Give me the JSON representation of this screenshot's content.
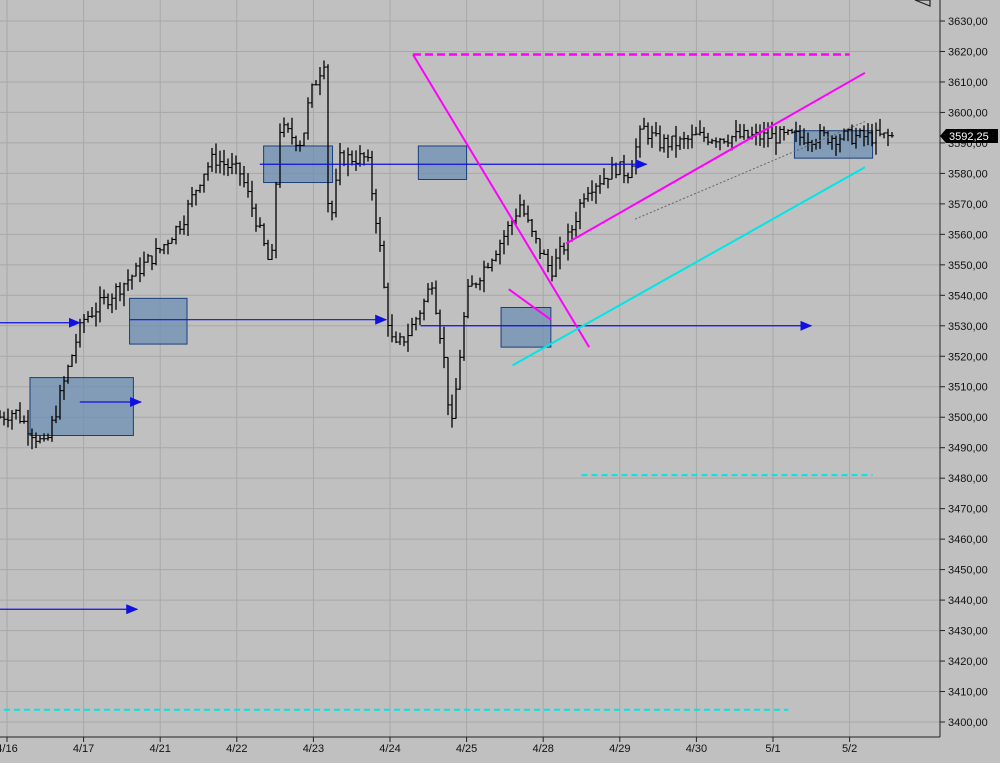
{
  "chart_data": {
    "type": "ohlc",
    "title": "",
    "xlabel": "",
    "ylabel": "",
    "ylim": [
      3396,
      3640
    ],
    "grid": true,
    "y_ticks": [
      "3630,00",
      "3620,00",
      "3610,00",
      "3600,00",
      "3590,00",
      "3580,00",
      "3570,00",
      "3560,00",
      "3550,00",
      "3540,00",
      "3530,00",
      "3520,00",
      "3510,00",
      "3500,00",
      "3490,00",
      "3480,00",
      "3470,00",
      "3460,00",
      "3450,00",
      "3440,00",
      "3430,00",
      "3420,00",
      "3410,00",
      "3400,00"
    ],
    "x_ticks": [
      "4/16",
      "4/17",
      "4/21",
      "4/22",
      "4/23",
      "4/24",
      "4/25",
      "4/28",
      "4/29",
      "4/30",
      "5/1",
      "5/2"
    ],
    "last_price": 3592.25,
    "last_price_label": "3592,25",
    "colors": {
      "background": "#c0c0c0",
      "grid": "#a8a8a8",
      "bars": "#000000",
      "arrows": "#1010e0",
      "boxes_fill": "#6e8fb4",
      "boxes_stroke": "#1a3f7a",
      "magenta": "#ff00ff",
      "cyan": "#00e5e5"
    },
    "key_closes": [
      [
        -0.1,
        3500
      ],
      [
        0.1,
        3502
      ],
      [
        0.5,
        3490
      ],
      [
        0.9,
        3525
      ],
      [
        1.0,
        3532
      ],
      [
        1.7,
        3548
      ],
      [
        2.0,
        3555
      ],
      [
        2.3,
        3565
      ],
      [
        2.55,
        3580
      ],
      [
        2.7,
        3585
      ],
      [
        3.05,
        3580
      ],
      [
        3.25,
        3565
      ],
      [
        3.45,
        3548
      ],
      [
        3.55,
        3595
      ],
      [
        3.85,
        3590
      ],
      [
        3.95,
        3605
      ],
      [
        4.15,
        3618
      ],
      [
        4.2,
        3560
      ],
      [
        4.35,
        3585
      ],
      [
        4.7,
        3585
      ],
      [
        4.85,
        3560
      ],
      [
        4.95,
        3535
      ],
      [
        5.05,
        3522
      ],
      [
        5.25,
        3528
      ],
      [
        5.45,
        3538
      ],
      [
        5.55,
        3545
      ],
      [
        5.7,
        3520
      ],
      [
        5.8,
        3495
      ],
      [
        6.0,
        3540
      ],
      [
        6.2,
        3548
      ],
      [
        6.5,
        3560
      ],
      [
        6.7,
        3570
      ],
      [
        6.85,
        3560
      ],
      [
        7.1,
        3548
      ],
      [
        7.35,
        3560
      ],
      [
        7.55,
        3575
      ],
      [
        7.75,
        3578
      ],
      [
        7.95,
        3582
      ],
      [
        8.1,
        3580
      ],
      [
        8.3,
        3595
      ],
      [
        8.5,
        3590
      ],
      [
        8.8,
        3590
      ],
      [
        9.0,
        3592
      ]
    ],
    "arrows": [
      {
        "from": [
          -0.3,
          3531
        ],
        "to": [
          0.95,
          3531
        ]
      },
      {
        "from": [
          0.95,
          3505
        ],
        "to": [
          1.75,
          3505
        ]
      },
      {
        "from": [
          -0.3,
          3437
        ],
        "to": [
          1.7,
          3437
        ]
      },
      {
        "from": [
          1.6,
          3532
        ],
        "to": [
          4.95,
          3532
        ]
      },
      {
        "from": [
          3.3,
          3583
        ],
        "to": [
          8.35,
          3583
        ]
      },
      {
        "from": [
          5.4,
          3530
        ],
        "to": [
          10.5,
          3530
        ]
      }
    ],
    "boxes": [
      {
        "x": [
          0.3,
          1.65
        ],
        "y": [
          3494,
          3513
        ]
      },
      {
        "x": [
          1.6,
          2.35
        ],
        "y": [
          3524,
          3539
        ]
      },
      {
        "x": [
          3.35,
          4.25
        ],
        "y": [
          3577,
          3589
        ]
      },
      {
        "x": [
          5.37,
          6.0
        ],
        "y": [
          3578,
          3589
        ]
      },
      {
        "x": [
          6.45,
          7.1
        ],
        "y": [
          3523,
          3536
        ]
      },
      {
        "x": [
          10.28,
          11.3
        ],
        "y": [
          3585,
          3594
        ]
      }
    ],
    "magenta_lines": [
      {
        "from": [
          5.3,
          3619
        ],
        "to": [
          11.0,
          3619
        ],
        "dashed": true
      },
      {
        "from": [
          5.3,
          3619
        ],
        "to": [
          7.6,
          3523
        ],
        "dashed": false
      },
      {
        "from": [
          7.3,
          3557
        ],
        "to": [
          11.2,
          3613
        ],
        "dashed": false
      },
      {
        "from": [
          6.55,
          3542
        ],
        "to": [
          7.1,
          3532
        ],
        "dashed": false
      }
    ],
    "cyan_lines": [
      {
        "from": [
          6.6,
          3517
        ],
        "to": [
          11.2,
          3582
        ],
        "dashed": false
      },
      {
        "from": [
          7.5,
          3481
        ],
        "to": [
          11.3,
          3481
        ],
        "dashed": true
      },
      {
        "from": [
          -0.3,
          3404
        ],
        "to": [
          10.2,
          3404
        ],
        "dashed": true
      }
    ],
    "dotted_line": {
      "from": [
        8.2,
        3565
      ],
      "to": [
        11.2,
        3597
      ]
    }
  }
}
